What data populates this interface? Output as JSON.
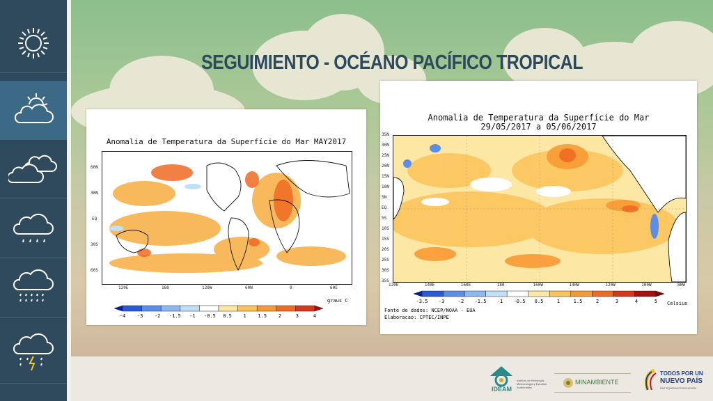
{
  "header": {
    "title": "SEGUIMIENTO - OCÉANO PACÍFICO TROPICAL"
  },
  "sidebar": {
    "items": [
      {
        "name": "sun-icon",
        "active": false
      },
      {
        "name": "sun-cloud-icon",
        "active": true
      },
      {
        "name": "clouds-icon",
        "active": false
      },
      {
        "name": "rain-cloud-icon",
        "active": false
      },
      {
        "name": "heavy-rain-cloud-icon",
        "active": false
      },
      {
        "name": "storm-cloud-icon",
        "active": false
      }
    ]
  },
  "left_map": {
    "title": "Anomalia de Temperatura da Superfície do Mar MAY2017",
    "lat_labels": [
      "60N",
      "30N",
      "EQ",
      "30S",
      "60S"
    ],
    "lon_labels": [
      "120E",
      "180",
      "120W",
      "60W",
      "0",
      "60E"
    ],
    "colorbar_labels": [
      "-4",
      "-3",
      "-2",
      "-1.5",
      "-1",
      "-0.5",
      "0.5",
      "1",
      "1.5",
      "2",
      "3",
      "4"
    ],
    "unit": "graus C"
  },
  "right_map": {
    "title_line1": "Anomalia de Temperatura da Superfície do Mar",
    "title_line2": "29/05/2017 a 05/06/2017",
    "lat_labels": [
      "35N",
      "30N",
      "25N",
      "20N",
      "15N",
      "10N",
      "5N",
      "EQ",
      "5S",
      "10S",
      "15S",
      "20S",
      "25S",
      "30S",
      "35S"
    ],
    "lon_labels": [
      "120E",
      "140E",
      "160E",
      "180",
      "160W",
      "140W",
      "120W",
      "100W",
      "80W"
    ],
    "colorbar_labels": [
      "-3.5",
      "-3",
      "-2",
      "-1.5",
      "-1",
      "-0.5",
      "0.5",
      "1",
      "1.5",
      "2",
      "3",
      "4",
      "5"
    ],
    "unit": "Celsius",
    "source": "Fonte de dados: NCEP/NOAA - EUA",
    "credit": "Elaboracao: CPTEC/INPE"
  },
  "colors": {
    "colorbar": [
      "#0a1f9e",
      "#2a58d8",
      "#5c8de8",
      "#8db7f0",
      "#bfe0f6",
      "#ffffff",
      "#fde7a4",
      "#fcc35a",
      "#f89a34",
      "#ef6a22",
      "#d8361a",
      "#a61010"
    ]
  },
  "footer": {
    "ideam_name": "IDEAM",
    "ideam_subtitle": "Instituto de Hidrología, Meteorología y Estudios Ambientales",
    "minambiente": "MINAMBIENTE",
    "gov_line1": "TODOS POR UN",
    "gov_line2": "NUEVO PAÍS",
    "gov_line3": "PAZ EQUIDAD EDUCACIÓN"
  }
}
